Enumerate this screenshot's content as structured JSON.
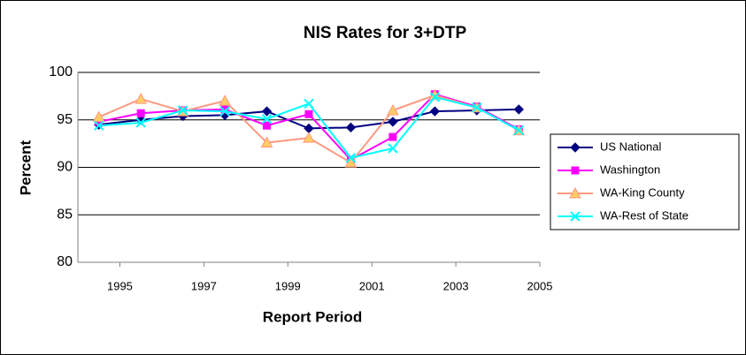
{
  "chart_data": {
    "type": "line",
    "title": "NIS Rates for 3+DTP",
    "x_label": "Report Period",
    "y_label": "Percent",
    "x": [
      1994.5,
      1995.5,
      1996.5,
      1997.5,
      1998.5,
      1999.5,
      2000.5,
      2001.5,
      2002.5,
      2003.5,
      2004.5
    ],
    "xlim": [
      1994,
      2005
    ],
    "xticks": [
      1995,
      1997,
      1999,
      2001,
      2003,
      2005
    ],
    "ylim": [
      80,
      100
    ],
    "yticks": [
      80,
      85,
      90,
      95,
      100
    ],
    "grid": true,
    "legend": "right",
    "series": [
      {
        "name": "US National",
        "color": "#000080",
        "marker": "diamond",
        "values": [
          94.5,
          95.0,
          95.4,
          95.5,
          95.9,
          94.1,
          94.2,
          94.8,
          95.9,
          96.0,
          96.1
        ]
      },
      {
        "name": "Washington",
        "color": "#FF00FF",
        "marker": "square",
        "values": [
          94.8,
          95.7,
          96.0,
          96.1,
          94.4,
          95.6,
          90.8,
          93.2,
          97.7,
          96.4,
          94.0
        ]
      },
      {
        "name": "WA-King County",
        "color": "#FF9980",
        "marker": "triangle",
        "values": [
          95.3,
          97.2,
          95.9,
          97.0,
          92.6,
          93.1,
          90.5,
          96.0,
          97.6,
          96.3,
          93.9
        ]
      },
      {
        "name": "WA-Rest of State",
        "color": "#00FFFF",
        "marker": "cross",
        "values": [
          94.4,
          94.7,
          96.0,
          95.9,
          95.1,
          96.7,
          91.0,
          92.0,
          97.4,
          96.3,
          93.9
        ]
      }
    ]
  }
}
